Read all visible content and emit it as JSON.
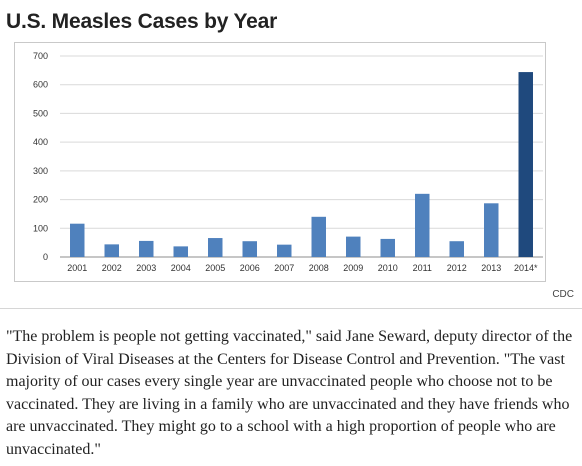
{
  "header": {
    "title": "U.S. Measles Cases by Year"
  },
  "chart_data": {
    "type": "bar",
    "title": "",
    "xlabel": "",
    "ylabel": "",
    "categories": [
      "2001",
      "2002",
      "2003",
      "2004",
      "2005",
      "2006",
      "2007",
      "2008",
      "2009",
      "2010",
      "2011",
      "2012",
      "2013",
      "2014*"
    ],
    "values": [
      116,
      44,
      56,
      37,
      66,
      55,
      43,
      140,
      71,
      63,
      220,
      55,
      187,
      644
    ],
    "ylim": [
      0,
      700
    ],
    "yticks": [
      0,
      100,
      200,
      300,
      400,
      500,
      600,
      700
    ],
    "ytick_labels": [
      "0",
      "100",
      "200",
      "300",
      "400",
      "500",
      "600",
      "700"
    ],
    "grid": true,
    "bar_color": "#4f81bd",
    "highlight_color": "#1f497d",
    "highlight_category": "2014*"
  },
  "source": {
    "credit": "CDC"
  },
  "article": {
    "paragraph": "\"The problem is people not getting vaccinated,\" said Jane Seward, deputy director of the Division of Viral Diseases at the Centers for Disease Control and Prevention. \"The vast majority of our cases every single year are unvaccinated people who choose not to be vaccinated. They are living in a family who are unvaccinated and they have friends who are unvaccinated. They might go to a school with a high proportion of people who are unvaccinated.\""
  }
}
